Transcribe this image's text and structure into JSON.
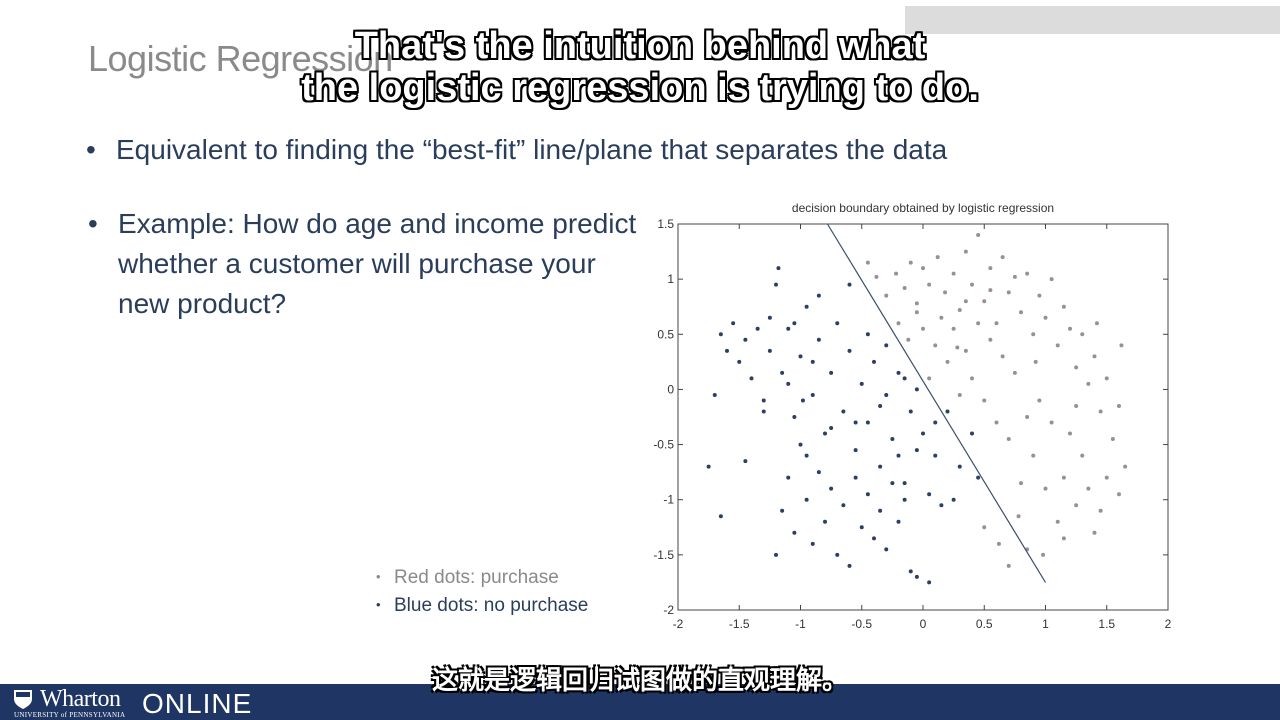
{
  "slide": {
    "title": "Logistic Regression",
    "bullets": [
      "Equivalent to finding the “best-fit” line/plane that separates the data",
      "Example: How do age and income predict whether a customer will purchase your new product?"
    ],
    "bullet_symbol": "•",
    "legend": {
      "red": "Red dots: purchase",
      "blue": "Blue dots: no purchase",
      "marker": "•"
    }
  },
  "subtitles": {
    "english_line1": "That's the intuition behind what",
    "english_line2": "the logistic regression is trying to do.",
    "chinese": "这就是逻辑回归试图做的直观理解。"
  },
  "footer": {
    "logo_word": "Wharton",
    "logo_sub": "UNIVERSITY of PENNSYLVANIA",
    "logo_online": "ONLINE",
    "color": "#1f3563"
  },
  "chart_data": {
    "type": "scatter",
    "title": "decision boundary obtained by logistic regression",
    "xlim": [
      -2,
      2
    ],
    "ylim": [
      -2,
      1.5
    ],
    "xticks": [
      -2,
      -1.5,
      -1,
      -0.5,
      0,
      0.5,
      1,
      1.5,
      2
    ],
    "yticks": [
      -2,
      -1.5,
      -1,
      -0.5,
      0,
      0.5,
      1,
      1.5
    ],
    "boundary": {
      "from": [
        -0.78,
        1.5
      ],
      "to": [
        1.0,
        -1.75
      ]
    },
    "colors": {
      "purchase": "#9a8f99",
      "no_purchase": "#2c3f66"
    },
    "series": [
      {
        "label": "purchase",
        "points": [
          [
            -0.45,
            1.15
          ],
          [
            -0.38,
            1.02
          ],
          [
            -0.3,
            0.85
          ],
          [
            -0.22,
            1.05
          ],
          [
            -0.15,
            0.92
          ],
          [
            -0.1,
            1.15
          ],
          [
            -0.05,
            0.78
          ],
          [
            0.0,
            1.1
          ],
          [
            0.05,
            0.95
          ],
          [
            0.12,
            1.2
          ],
          [
            0.18,
            0.88
          ],
          [
            0.25,
            1.05
          ],
          [
            0.3,
            0.72
          ],
          [
            0.35,
            1.25
          ],
          [
            0.4,
            0.95
          ],
          [
            0.45,
            1.4
          ],
          [
            0.5,
            0.8
          ],
          [
            0.55,
            1.1
          ],
          [
            0.6,
            0.6
          ],
          [
            0.65,
            1.2
          ],
          [
            0.7,
            0.88
          ],
          [
            0.75,
            1.02
          ],
          [
            0.8,
            0.7
          ],
          [
            0.85,
            1.05
          ],
          [
            0.9,
            0.5
          ],
          [
            0.95,
            0.85
          ],
          [
            1.0,
            0.65
          ],
          [
            1.05,
            1.0
          ],
          [
            1.1,
            0.4
          ],
          [
            1.15,
            0.75
          ],
          [
            1.2,
            0.55
          ],
          [
            1.25,
            0.2
          ],
          [
            1.3,
            0.5
          ],
          [
            1.35,
            0.05
          ],
          [
            1.4,
            0.3
          ],
          [
            1.45,
            -0.2
          ],
          [
            1.5,
            0.1
          ],
          [
            1.55,
            -0.45
          ],
          [
            1.6,
            -0.15
          ],
          [
            1.65,
            -0.7
          ],
          [
            1.6,
            -0.95
          ],
          [
            1.5,
            -0.8
          ],
          [
            1.45,
            -1.1
          ],
          [
            1.4,
            -1.3
          ],
          [
            1.35,
            -0.9
          ],
          [
            1.3,
            -0.6
          ],
          [
            1.25,
            -1.05
          ],
          [
            1.2,
            -0.4
          ],
          [
            1.15,
            -0.8
          ],
          [
            1.1,
            -1.2
          ],
          [
            1.05,
            -0.3
          ],
          [
            1.0,
            -0.9
          ],
          [
            0.95,
            -0.1
          ],
          [
            0.9,
            -0.6
          ],
          [
            0.85,
            -0.25
          ],
          [
            0.8,
            -0.85
          ],
          [
            0.75,
            0.15
          ],
          [
            0.7,
            -0.45
          ],
          [
            0.65,
            0.3
          ],
          [
            0.6,
            -0.3
          ],
          [
            0.55,
            0.45
          ],
          [
            0.5,
            -0.1
          ],
          [
            0.45,
            0.6
          ],
          [
            0.4,
            0.1
          ],
          [
            0.35,
            0.35
          ],
          [
            0.3,
            -0.05
          ],
          [
            0.25,
            0.55
          ],
          [
            0.2,
            0.25
          ],
          [
            0.15,
            0.65
          ],
          [
            0.1,
            0.4
          ],
          [
            0.05,
            0.1
          ],
          [
            0.0,
            0.55
          ],
          [
            -0.05,
            0.7
          ],
          [
            -0.12,
            0.45
          ],
          [
            -0.2,
            0.6
          ],
          [
            0.62,
            -1.4
          ],
          [
            0.85,
            -1.45
          ],
          [
            0.98,
            -1.5
          ],
          [
            0.7,
            -1.6
          ],
          [
            1.15,
            -1.35
          ],
          [
            0.5,
            -1.25
          ],
          [
            0.78,
            -1.15
          ],
          [
            1.25,
            -0.15
          ],
          [
            0.92,
            0.25
          ],
          [
            0.55,
            0.9
          ],
          [
            0.35,
            0.8
          ],
          [
            0.28,
            0.38
          ],
          [
            1.42,
            0.6
          ],
          [
            1.62,
            0.4
          ]
        ]
      },
      {
        "label": "no purchase",
        "points": [
          [
            -1.65,
            0.5
          ],
          [
            -1.6,
            0.35
          ],
          [
            -1.55,
            0.6
          ],
          [
            -1.5,
            0.25
          ],
          [
            -1.45,
            0.45
          ],
          [
            -1.4,
            0.1
          ],
          [
            -1.35,
            0.55
          ],
          [
            -1.3,
            -0.1
          ],
          [
            -1.25,
            0.35
          ],
          [
            -1.2,
            0.95
          ],
          [
            -1.18,
            1.1
          ],
          [
            -1.15,
            0.15
          ],
          [
            -1.1,
            0.55
          ],
          [
            -1.05,
            -0.25
          ],
          [
            -1.0,
            0.3
          ],
          [
            -0.95,
            0.75
          ],
          [
            -0.9,
            -0.05
          ],
          [
            -0.85,
            0.45
          ],
          [
            -0.8,
            -0.4
          ],
          [
            -0.75,
            0.15
          ],
          [
            -0.7,
            0.6
          ],
          [
            -0.65,
            -0.2
          ],
          [
            -0.6,
            0.35
          ],
          [
            -0.55,
            -0.55
          ],
          [
            -0.5,
            0.05
          ],
          [
            -0.45,
            -0.3
          ],
          [
            -0.4,
            0.25
          ],
          [
            -0.35,
            -0.7
          ],
          [
            -0.3,
            -0.05
          ],
          [
            -0.25,
            -0.45
          ],
          [
            -0.2,
            0.15
          ],
          [
            -0.15,
            -0.85
          ],
          [
            -0.1,
            -0.2
          ],
          [
            -0.05,
            -0.55
          ],
          [
            0.0,
            -0.4
          ],
          [
            0.05,
            -0.95
          ],
          [
            0.1,
            -0.6
          ],
          [
            0.15,
            -1.05
          ],
          [
            -1.75,
            -0.7
          ],
          [
            -1.7,
            -0.05
          ],
          [
            -1.65,
            -1.15
          ],
          [
            -1.45,
            -0.65
          ],
          [
            -1.2,
            -1.5
          ],
          [
            -1.15,
            -1.1
          ],
          [
            -1.1,
            -0.8
          ],
          [
            -1.05,
            -1.3
          ],
          [
            -1.0,
            -0.5
          ],
          [
            -0.95,
            -1.0
          ],
          [
            -0.9,
            -1.4
          ],
          [
            -0.85,
            -0.75
          ],
          [
            -0.8,
            -1.2
          ],
          [
            -0.75,
            -0.9
          ],
          [
            -0.7,
            -1.5
          ],
          [
            -0.65,
            -1.05
          ],
          [
            -0.6,
            -1.6
          ],
          [
            -0.55,
            -0.8
          ],
          [
            -0.5,
            -1.25
          ],
          [
            -0.45,
            -0.95
          ],
          [
            -0.4,
            -1.35
          ],
          [
            -0.35,
            -1.1
          ],
          [
            -0.3,
            -1.45
          ],
          [
            -0.25,
            -0.85
          ],
          [
            -0.2,
            -1.2
          ],
          [
            -0.15,
            -1.0
          ],
          [
            -0.1,
            -1.65
          ],
          [
            -0.05,
            -1.7
          ],
          [
            0.05,
            -1.75
          ],
          [
            0.25,
            -1.0
          ],
          [
            0.3,
            -0.7
          ],
          [
            0.4,
            -0.4
          ],
          [
            0.45,
            -0.8
          ],
          [
            -1.3,
            -0.2
          ],
          [
            -1.1,
            0.05
          ],
          [
            -0.95,
            -0.6
          ],
          [
            -0.85,
            0.85
          ],
          [
            -0.6,
            0.95
          ],
          [
            -0.45,
            0.5
          ],
          [
            -0.3,
            0.4
          ],
          [
            -0.15,
            0.1
          ],
          [
            -0.05,
            0.0
          ],
          [
            -0.98,
            -0.1
          ],
          [
            -1.25,
            0.65
          ],
          [
            -1.05,
            0.6
          ],
          [
            -0.75,
            -0.35
          ],
          [
            -0.55,
            -0.3
          ],
          [
            -0.35,
            -0.15
          ],
          [
            -0.2,
            -0.6
          ],
          [
            0.1,
            -0.3
          ],
          [
            0.2,
            -0.2
          ],
          [
            -0.9,
            0.25
          ]
        ]
      }
    ]
  }
}
